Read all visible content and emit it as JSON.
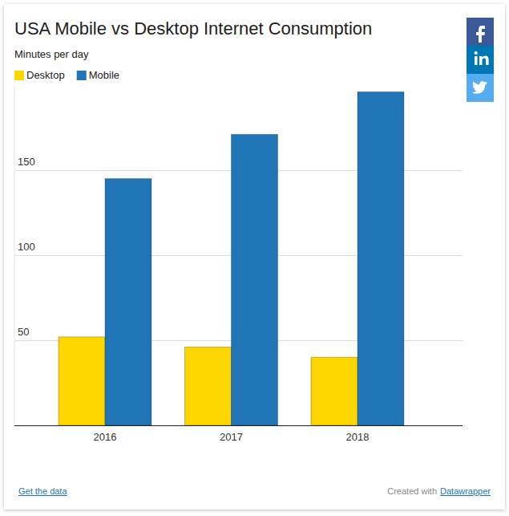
{
  "chart_data": {
    "type": "bar",
    "title": "USA Mobile vs Desktop Internet Consumption",
    "subtitle": "Minutes per day",
    "categories": [
      "2016",
      "2017",
      "2018"
    ],
    "series": [
      {
        "name": "Desktop",
        "color": "#fdd600",
        "values": [
          52,
          46,
          40
        ]
      },
      {
        "name": "Mobile",
        "color": "#1f75b5",
        "values": [
          145,
          171,
          196
        ]
      }
    ],
    "ylim": [
      0,
      200
    ],
    "yticks": [
      50,
      100,
      150
    ],
    "grid": true,
    "legend": "top-left",
    "annotations": [
      "Get the data",
      "Created with",
      "Datawrapper"
    ]
  }
}
